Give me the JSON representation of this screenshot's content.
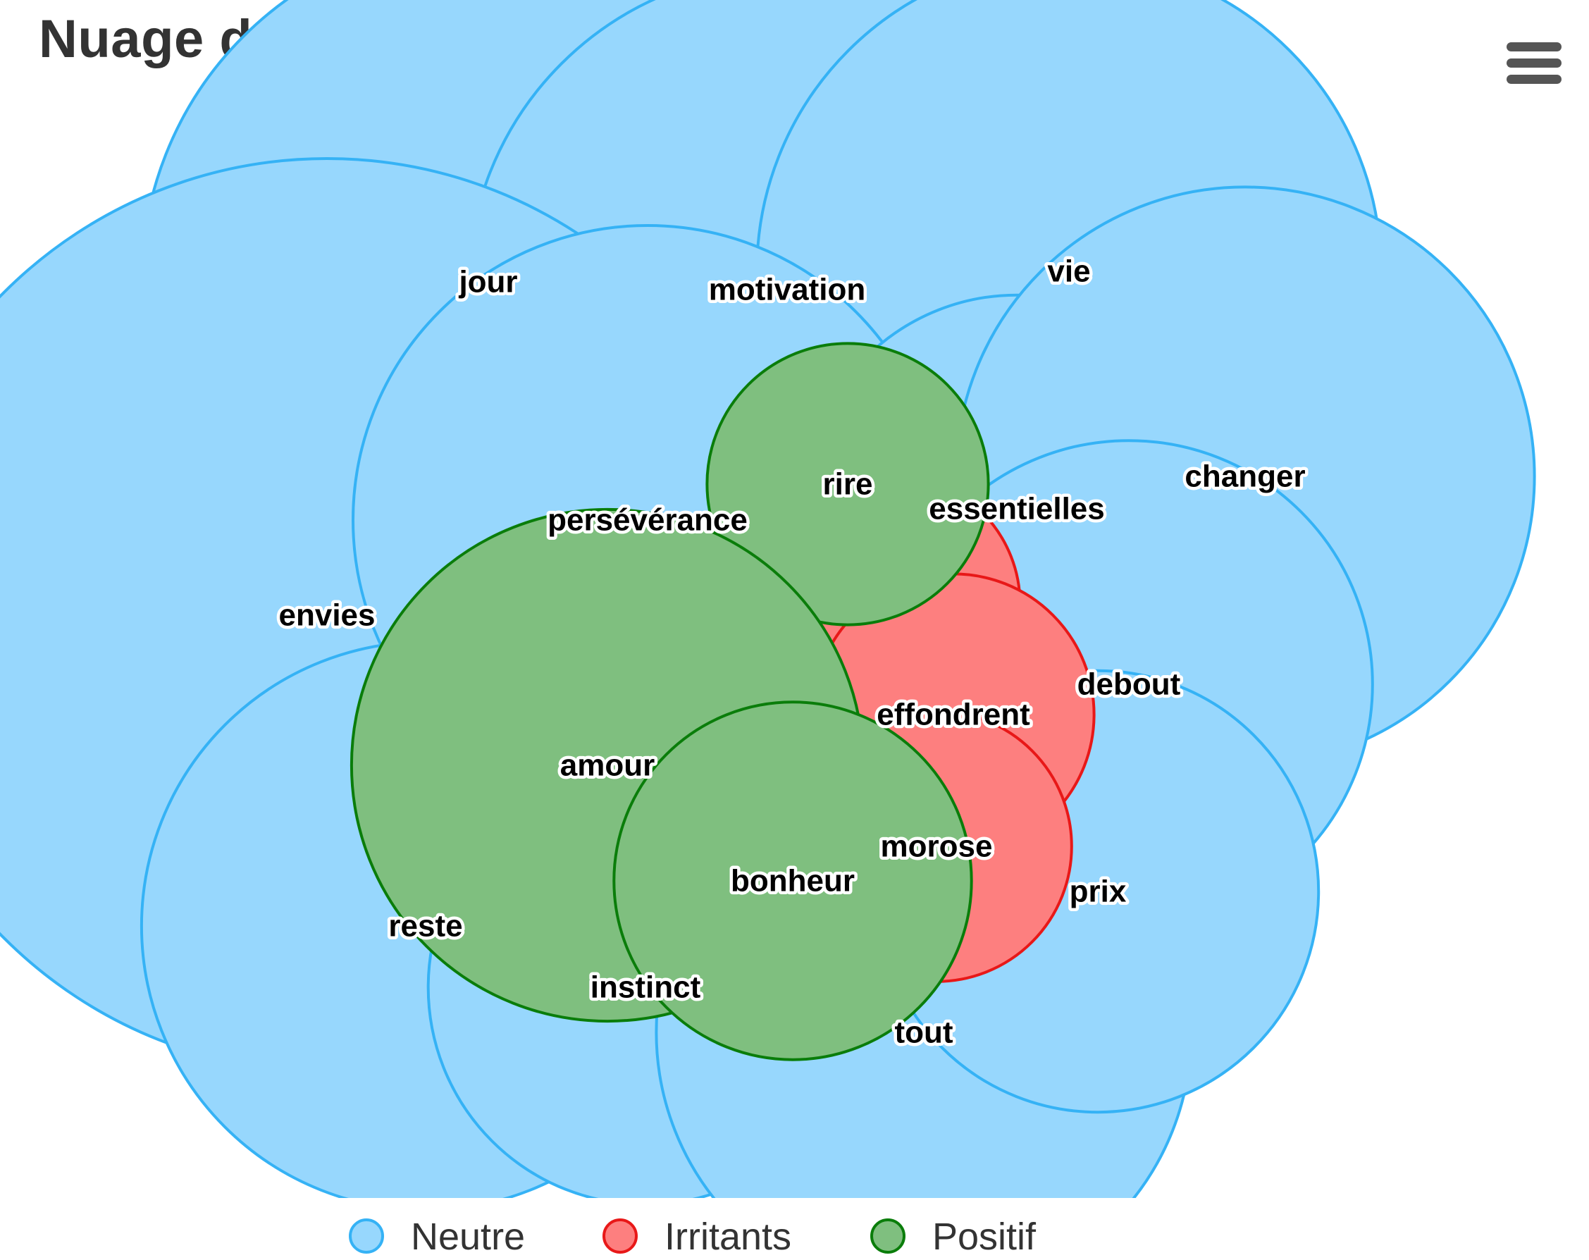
{
  "chart_data": {
    "type": "packed-bubble",
    "title": "Nuage de mots - fréquence du verbatim client",
    "series": [
      {
        "name": "Neutre",
        "fill": "#97d7fd",
        "stroke": "#35b2f5",
        "points": [
          {
            "label": "jour",
            "value": 79
          },
          {
            "label": "motivation",
            "value": 67
          },
          {
            "label": "vie",
            "value": 64
          },
          {
            "label": "envies",
            "value": 137
          },
          {
            "label": "persévérance",
            "value": 57
          },
          {
            "label": "essentielles",
            "value": 30
          },
          {
            "label": "changer",
            "value": 55
          },
          {
            "label": "debout",
            "value": 39
          },
          {
            "label": "reste",
            "value": 53
          },
          {
            "label": "instinct",
            "value": 31
          },
          {
            "label": "tout",
            "value": 47
          },
          {
            "label": "prix",
            "value": 32
          },
          {
            "label": "",
            "value": 5
          },
          {
            "label": "",
            "value": 6
          },
          {
            "label": "",
            "value": 6
          },
          {
            "label": "",
            "value": 5
          }
        ]
      },
      {
        "name": "Irritants",
        "fill": "#fd7f7f",
        "stroke": "#e81818",
        "points": [
          {
            "label": "",
            "value": 4
          },
          {
            "label": "",
            "value": 11
          },
          {
            "label": "effondrent",
            "value": 13
          },
          {
            "label": "morose",
            "value": 12
          }
        ]
      },
      {
        "name": "Positif",
        "fill": "#7fbf7f",
        "stroke": "#0a7d0a",
        "points": [
          {
            "label": "rire",
            "value": 13
          },
          {
            "label": "amour",
            "value": 43
          },
          {
            "label": "bonheur",
            "value": 21
          }
        ]
      }
    ]
  },
  "legend": {
    "items": [
      {
        "name": "Neutre"
      },
      {
        "name": "Irritants"
      },
      {
        "name": "Positif"
      }
    ]
  },
  "menu": {
    "icon": "hamburger-menu-icon"
  }
}
